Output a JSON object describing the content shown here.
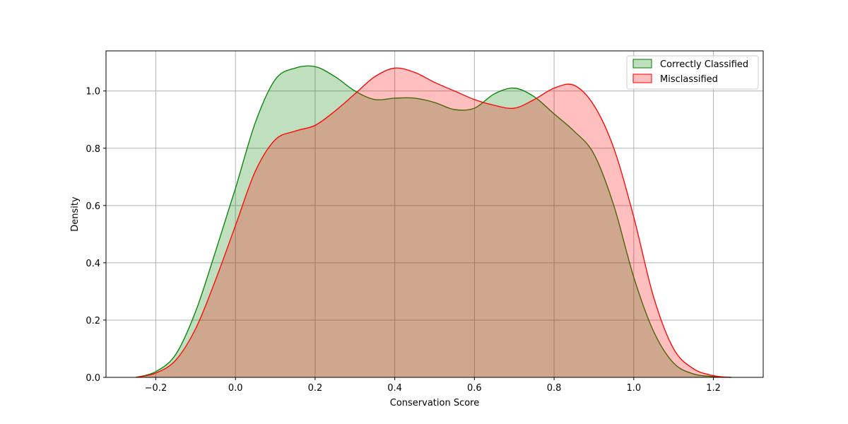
{
  "chart_data": {
    "type": "area",
    "title": "",
    "xlabel": "Conservation Score",
    "ylabel": "Density",
    "xlim": [
      -0.325,
      1.325
    ],
    "ylim": [
      0.0,
      1.14
    ],
    "xticks": [
      -0.2,
      0.0,
      0.2,
      0.4,
      0.6,
      0.8,
      1.0,
      1.2
    ],
    "xtick_labels": [
      "−0.2",
      "0.0",
      "0.2",
      "0.4",
      "0.6",
      "0.8",
      "1.0",
      "1.2"
    ],
    "yticks": [
      0.0,
      0.2,
      0.4,
      0.6,
      0.8,
      1.0
    ],
    "ytick_labels": [
      "0.0",
      "0.2",
      "0.4",
      "0.6",
      "0.8",
      "1.0"
    ],
    "grid": true,
    "legend_position": "top-right",
    "series": [
      {
        "name": "Correctly Classified",
        "color": "#008000",
        "fill": "rgba(0,128,0,0.25)",
        "x": [
          -0.25,
          -0.2,
          -0.15,
          -0.1,
          -0.05,
          0.0,
          0.05,
          0.1,
          0.15,
          0.2,
          0.25,
          0.3,
          0.35,
          0.4,
          0.45,
          0.5,
          0.55,
          0.6,
          0.65,
          0.7,
          0.75,
          0.8,
          0.85,
          0.9,
          0.95,
          1.0,
          1.05,
          1.1,
          1.15,
          1.2,
          1.245
        ],
        "y": [
          0.0,
          0.02,
          0.08,
          0.23,
          0.44,
          0.66,
          0.89,
          1.04,
          1.08,
          1.085,
          1.05,
          1.0,
          0.97,
          0.975,
          0.975,
          0.96,
          0.935,
          0.94,
          0.99,
          1.01,
          0.98,
          0.92,
          0.86,
          0.78,
          0.6,
          0.35,
          0.16,
          0.05,
          0.012,
          0.003,
          0.0
        ]
      },
      {
        "name": "Misclassified",
        "color": "#ff0000",
        "fill": "rgba(255,0,0,0.25)",
        "x": [
          -0.25,
          -0.2,
          -0.15,
          -0.1,
          -0.05,
          0.0,
          0.05,
          0.1,
          0.15,
          0.2,
          0.25,
          0.3,
          0.35,
          0.4,
          0.45,
          0.5,
          0.55,
          0.6,
          0.65,
          0.7,
          0.75,
          0.8,
          0.85,
          0.9,
          0.95,
          1.0,
          1.05,
          1.1,
          1.15,
          1.2,
          1.245
        ],
        "y": [
          0.0,
          0.015,
          0.06,
          0.17,
          0.34,
          0.53,
          0.72,
          0.83,
          0.86,
          0.88,
          0.93,
          0.99,
          1.05,
          1.08,
          1.065,
          1.03,
          1.0,
          0.97,
          0.95,
          0.94,
          0.97,
          1.01,
          1.02,
          0.95,
          0.8,
          0.56,
          0.28,
          0.1,
          0.03,
          0.006,
          0.0
        ]
      }
    ]
  }
}
